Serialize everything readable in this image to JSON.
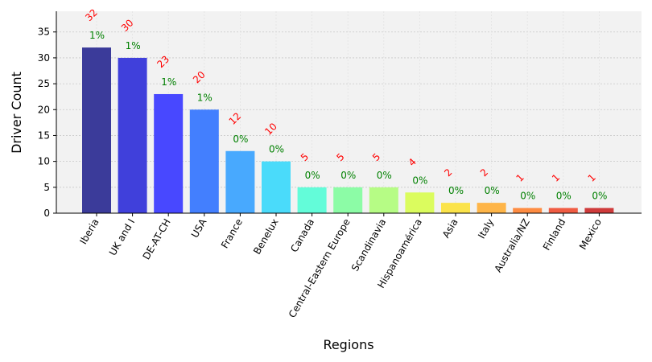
{
  "chart_data": {
    "type": "bar",
    "xlabel": "Regions",
    "ylabel": "Driver Count",
    "ylim": [
      0,
      39
    ],
    "yticks": [
      0,
      5,
      10,
      15,
      20,
      25,
      30,
      35
    ],
    "grid": true,
    "categories": [
      "Iberia",
      "UK and I",
      "DE-AT-CH",
      "USA",
      "France",
      "Benelux",
      "Canada",
      "Central-Eastern Europe",
      "Scandinavia",
      "Hispanoamérica",
      "Asia",
      "Italy",
      "Australia/NZ",
      "Finland",
      "Mexico"
    ],
    "values": [
      32,
      30,
      23,
      20,
      12,
      10,
      5,
      5,
      5,
      4,
      2,
      2,
      1,
      1,
      1
    ],
    "percent_labels": [
      "1%",
      "1%",
      "1%",
      "1%",
      "0%",
      "0%",
      "0%",
      "0%",
      "0%",
      "0%",
      "0%",
      "0%",
      "0%",
      "0%",
      "0%"
    ],
    "bar_colors": [
      "#3b3b9a",
      "#4040db",
      "#4848ff",
      "#437ffe",
      "#48a9fe",
      "#4adbfa",
      "#63fcd9",
      "#8cfca6",
      "#b6fc85",
      "#dbfc5e",
      "#fbe34a",
      "#feb548",
      "#fe8c42",
      "#f05c43",
      "#cf3b3b"
    ],
    "colors": {
      "count_label": "#ff0000",
      "percent_label": "#008000",
      "plot_bg": "#f2f2f2"
    }
  }
}
